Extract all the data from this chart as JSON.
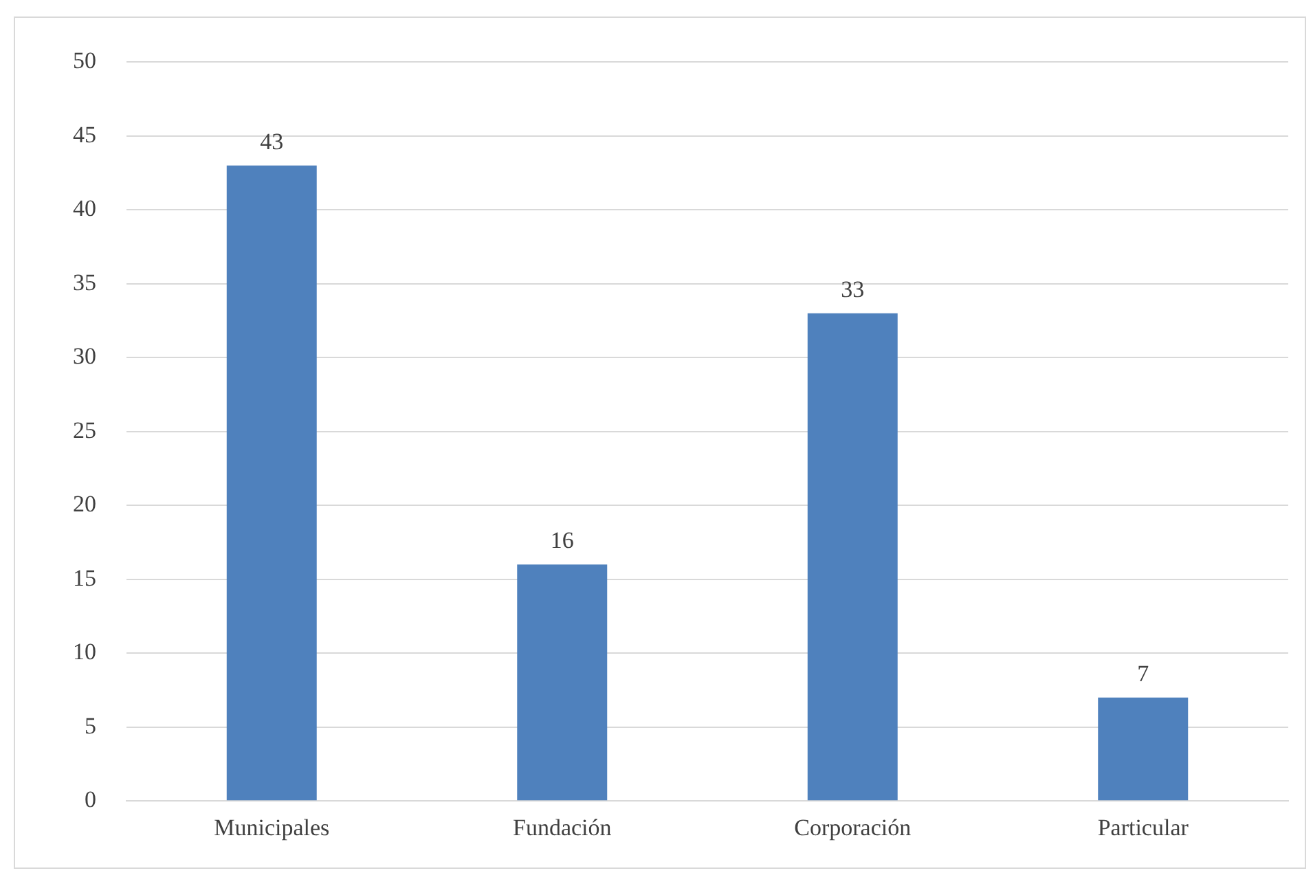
{
  "chart_data": {
    "type": "bar",
    "categories": [
      "Municipales",
      "Fundación",
      "Corporación",
      "Particular"
    ],
    "values": [
      43,
      16,
      33,
      7
    ],
    "color": "#4f81bd",
    "ylim": [
      0,
      50
    ],
    "yticks": [
      0,
      5,
      10,
      15,
      20,
      25,
      30,
      35,
      40,
      45,
      50
    ],
    "grid": "y",
    "data_labels": true
  }
}
